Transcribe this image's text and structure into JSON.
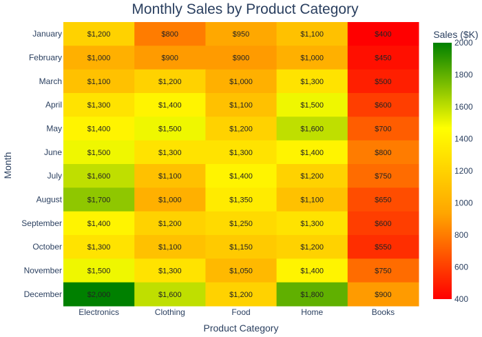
{
  "chart_data": {
    "type": "heatmap",
    "title": "Monthly Sales by Product Category",
    "xlabel": "Product Category",
    "ylabel": "Month",
    "colorbar_title": "Sales ($K)",
    "colorbar_range": [
      400,
      2000
    ],
    "colorbar_ticks": [
      "400",
      "600",
      "800",
      "1000",
      "1200",
      "1400",
      "1600",
      "1800",
      "2000"
    ],
    "colorscale": [
      "#ff0000",
      "#ffa500",
      "#ffff00",
      "#008000"
    ],
    "categories": [
      "Electronics",
      "Clothing",
      "Food",
      "Home",
      "Books"
    ],
    "rows": [
      "January",
      "February",
      "March",
      "April",
      "May",
      "June",
      "July",
      "August",
      "September",
      "October",
      "November",
      "December"
    ],
    "values": [
      [
        1200,
        800,
        950,
        1100,
        400
      ],
      [
        1000,
        900,
        900,
        1000,
        450
      ],
      [
        1100,
        1200,
        1000,
        1300,
        500
      ],
      [
        1300,
        1400,
        1100,
        1500,
        600
      ],
      [
        1400,
        1500,
        1200,
        1600,
        700
      ],
      [
        1500,
        1300,
        1300,
        1400,
        800
      ],
      [
        1600,
        1100,
        1400,
        1200,
        750
      ],
      [
        1700,
        1000,
        1350,
        1100,
        650
      ],
      [
        1400,
        1200,
        1250,
        1300,
        600
      ],
      [
        1300,
        1100,
        1150,
        1200,
        550
      ],
      [
        1500,
        1300,
        1050,
        1400,
        750
      ],
      [
        2000,
        1600,
        1200,
        1800,
        900
      ]
    ],
    "labels": [
      [
        "$1,200",
        "$800",
        "$950",
        "$1,100",
        "$400"
      ],
      [
        "$1,000",
        "$900",
        "$900",
        "$1,000",
        "$450"
      ],
      [
        "$1,100",
        "$1,200",
        "$1,000",
        "$1,300",
        "$500"
      ],
      [
        "$1,300",
        "$1,400",
        "$1,100",
        "$1,500",
        "$600"
      ],
      [
        "$1,400",
        "$1,500",
        "$1,200",
        "$1,600",
        "$700"
      ],
      [
        "$1,500",
        "$1,300",
        "$1,300",
        "$1,400",
        "$800"
      ],
      [
        "$1,600",
        "$1,100",
        "$1,400",
        "$1,200",
        "$750"
      ],
      [
        "$1,700",
        "$1,000",
        "$1,350",
        "$1,100",
        "$650"
      ],
      [
        "$1,400",
        "$1,200",
        "$1,250",
        "$1,300",
        "$600"
      ],
      [
        "$1,300",
        "$1,100",
        "$1,150",
        "$1,200",
        "$550"
      ],
      [
        "$1,500",
        "$1,300",
        "$1,050",
        "$1,400",
        "$750"
      ],
      [
        "$2,000",
        "$1,600",
        "$1,200",
        "$1,800",
        "$900"
      ]
    ]
  }
}
